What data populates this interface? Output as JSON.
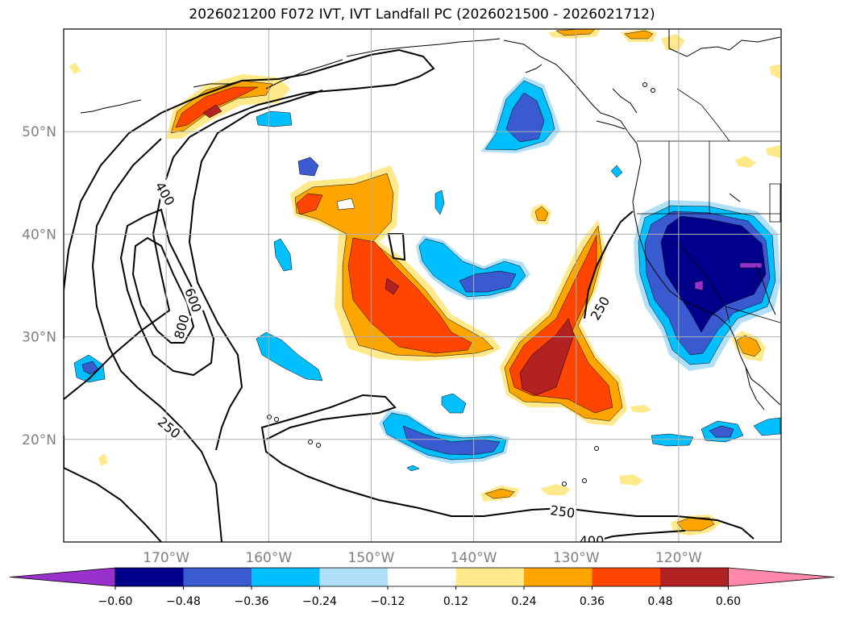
{
  "title": "2026021200 F072 IVT, IVT Landfall PC (2026021500 - 2026021712)",
  "chart_data": {
    "type": "heatmap",
    "title": "2026021200 F072 IVT, IVT Landfall PC (2026021500 - 2026021712)",
    "xlabel": "",
    "ylabel": "",
    "xlim": [
      -180,
      -110
    ],
    "ylim": [
      10,
      60
    ],
    "grid": true,
    "x_ticks": [
      -170,
      -160,
      -150,
      -140,
      -130,
      -120
    ],
    "x_tick_labels": [
      "170°W",
      "160°W",
      "150°W",
      "140°W",
      "130°W",
      "120°W"
    ],
    "y_ticks": [
      20,
      30,
      40,
      50
    ],
    "y_tick_labels": [
      "20°N",
      "30°N",
      "40°N",
      "50°N"
    ],
    "colorbar": {
      "extend": "both",
      "levels": [
        -0.6,
        -0.48,
        -0.36,
        -0.24,
        -0.12,
        0.12,
        0.24,
        0.36,
        0.48,
        0.6
      ],
      "tick_labels": [
        "−0.60",
        "−0.48",
        "−0.36",
        "−0.24",
        "−0.12",
        "0.12",
        "0.24",
        "0.36",
        "0.48",
        "0.60"
      ],
      "colors": [
        "#9932cc",
        "#00008b",
        "#3a5bd0",
        "#00bfff",
        "#b0e0f8",
        "#ffffff",
        "#ffe98a",
        "#ffa500",
        "#ff4500",
        "#b22222",
        "#ff88aa"
      ]
    },
    "ivt_contour_levels": [
      "250",
      "400",
      "600",
      "800"
    ],
    "ivt_contour_labels": [
      "400",
      "600",
      "800",
      "250",
      "250",
      "250",
      "400"
    ],
    "colors": {
      "coast": "#000000",
      "grid": "#b0b0b0",
      "tick_label": "#808080"
    }
  }
}
